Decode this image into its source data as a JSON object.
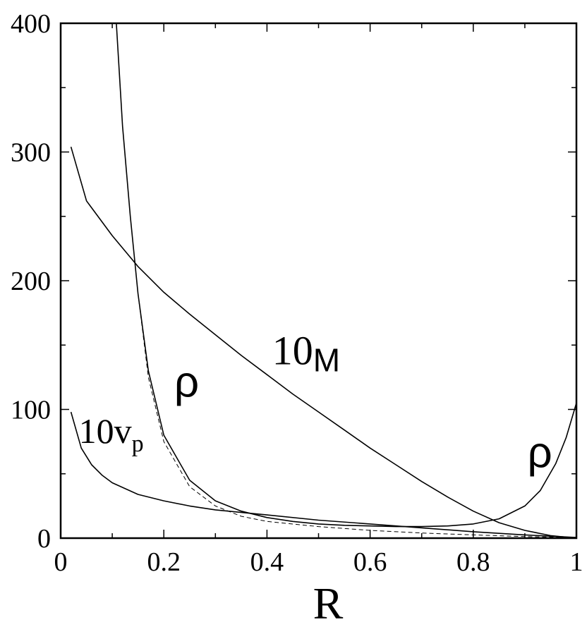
{
  "chart_data": {
    "type": "line",
    "xlabel": "R",
    "ylabel": "",
    "xlim": [
      0,
      1
    ],
    "ylim": [
      0,
      400
    ],
    "x_ticks": [
      0,
      0.2,
      0.4,
      0.6,
      0.8,
      1
    ],
    "x_tick_labels": [
      "0",
      "0.2",
      "0.4",
      "0.6",
      "0.8",
      "1"
    ],
    "y_ticks": [
      0,
      100,
      200,
      300,
      400
    ],
    "y_tick_labels": [
      "0",
      "100",
      "200",
      "300",
      "400"
    ],
    "grid": false,
    "series": [
      {
        "name": "10M",
        "style": "solid",
        "x": [
          0.02,
          0.05,
          0.1,
          0.15,
          0.2,
          0.25,
          0.3,
          0.35,
          0.4,
          0.45,
          0.5,
          0.55,
          0.6,
          0.65,
          0.7,
          0.75,
          0.8,
          0.85,
          0.9,
          0.95,
          1.0
        ],
        "y": [
          304,
          262,
          235,
          211,
          191,
          174,
          158,
          142,
          127,
          112,
          98,
          84,
          70,
          57,
          44,
          32,
          21,
          12,
          6,
          2,
          0
        ]
      },
      {
        "name": "ρ",
        "style": "solid",
        "x": [
          0.108,
          0.12,
          0.135,
          0.15,
          0.17,
          0.2,
          0.25,
          0.3,
          0.35,
          0.4,
          0.45,
          0.5,
          0.55,
          0.6,
          0.65,
          0.7,
          0.75,
          0.8,
          0.85,
          0.9,
          0.93,
          0.96,
          0.98,
          1.0
        ],
        "y": [
          400,
          320,
          250,
          190,
          130,
          80,
          45,
          29,
          21,
          16,
          13,
          11,
          10,
          9.5,
          9,
          9,
          9.5,
          11,
          15,
          25,
          37,
          58,
          78,
          105
        ]
      },
      {
        "name": "10v",
        "style": "solid",
        "x": [
          0.02,
          0.04,
          0.06,
          0.08,
          0.1,
          0.15,
          0.2,
          0.25,
          0.3,
          0.4,
          0.5,
          0.6,
          0.7,
          0.8,
          0.9,
          1.0
        ],
        "y": [
          98,
          70,
          57,
          49,
          43,
          34,
          29,
          25,
          22,
          18,
          14,
          11,
          8,
          5,
          2.5,
          0.5
        ]
      },
      {
        "name": "",
        "style": "dashed",
        "x": [
          0.15,
          0.17,
          0.2,
          0.25,
          0.3,
          0.35,
          0.4,
          0.5,
          0.6,
          0.7,
          0.8,
          0.9,
          1.0
        ],
        "y": [
          190,
          125,
          75,
          40,
          25,
          17,
          13,
          9,
          6,
          4,
          2.5,
          1.2,
          0.5
        ]
      }
    ],
    "annotations": [
      {
        "text": "10",
        "sub": "M",
        "x": 0.41,
        "y": 135
      },
      {
        "text": "ρ",
        "sub": "",
        "x": 0.22,
        "y": 110
      },
      {
        "text": "10v",
        "sub": "p",
        "x": 0.035,
        "y": 74
      },
      {
        "text": "ρ",
        "sub": "",
        "x": 0.905,
        "y": 55
      }
    ]
  }
}
